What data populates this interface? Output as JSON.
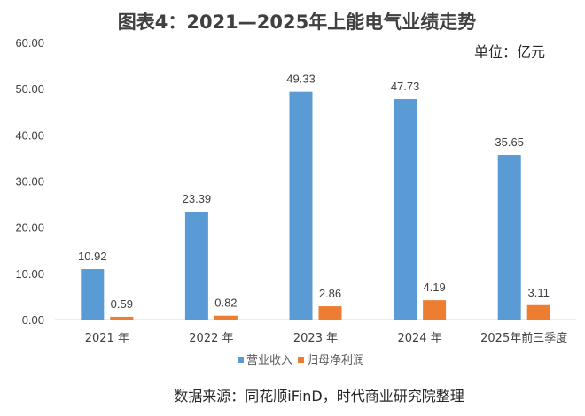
{
  "chart_data": {
    "type": "bar",
    "title": "图表4：2021—2025年上能电气业绩走势",
    "unit_label": "单位：亿元",
    "categories": [
      "2021 年",
      "2022 年",
      "2023 年",
      "2024 年",
      "2025年前三季度"
    ],
    "series": [
      {
        "name": "营业收入",
        "color": "#5B9BD5",
        "values": [
          10.92,
          23.39,
          49.33,
          47.73,
          35.65
        ],
        "labels": [
          "10.92",
          "23.39",
          "49.33",
          "47.73",
          "35.65"
        ]
      },
      {
        "name": "归母净利润",
        "color": "#ED7D31",
        "values": [
          0.59,
          0.82,
          2.86,
          4.19,
          3.11
        ],
        "labels": [
          "0.59",
          "0.82",
          "2.86",
          "4.19",
          "3.11"
        ]
      }
    ],
    "ylim": [
      0,
      60
    ],
    "yticks": [
      "0.00",
      "10.00",
      "20.00",
      "30.00",
      "40.00",
      "50.00",
      "60.00"
    ],
    "grid": false,
    "legend": "bottom",
    "source": "数据来源：同花顺iFinD，时代商业研究院整理"
  }
}
